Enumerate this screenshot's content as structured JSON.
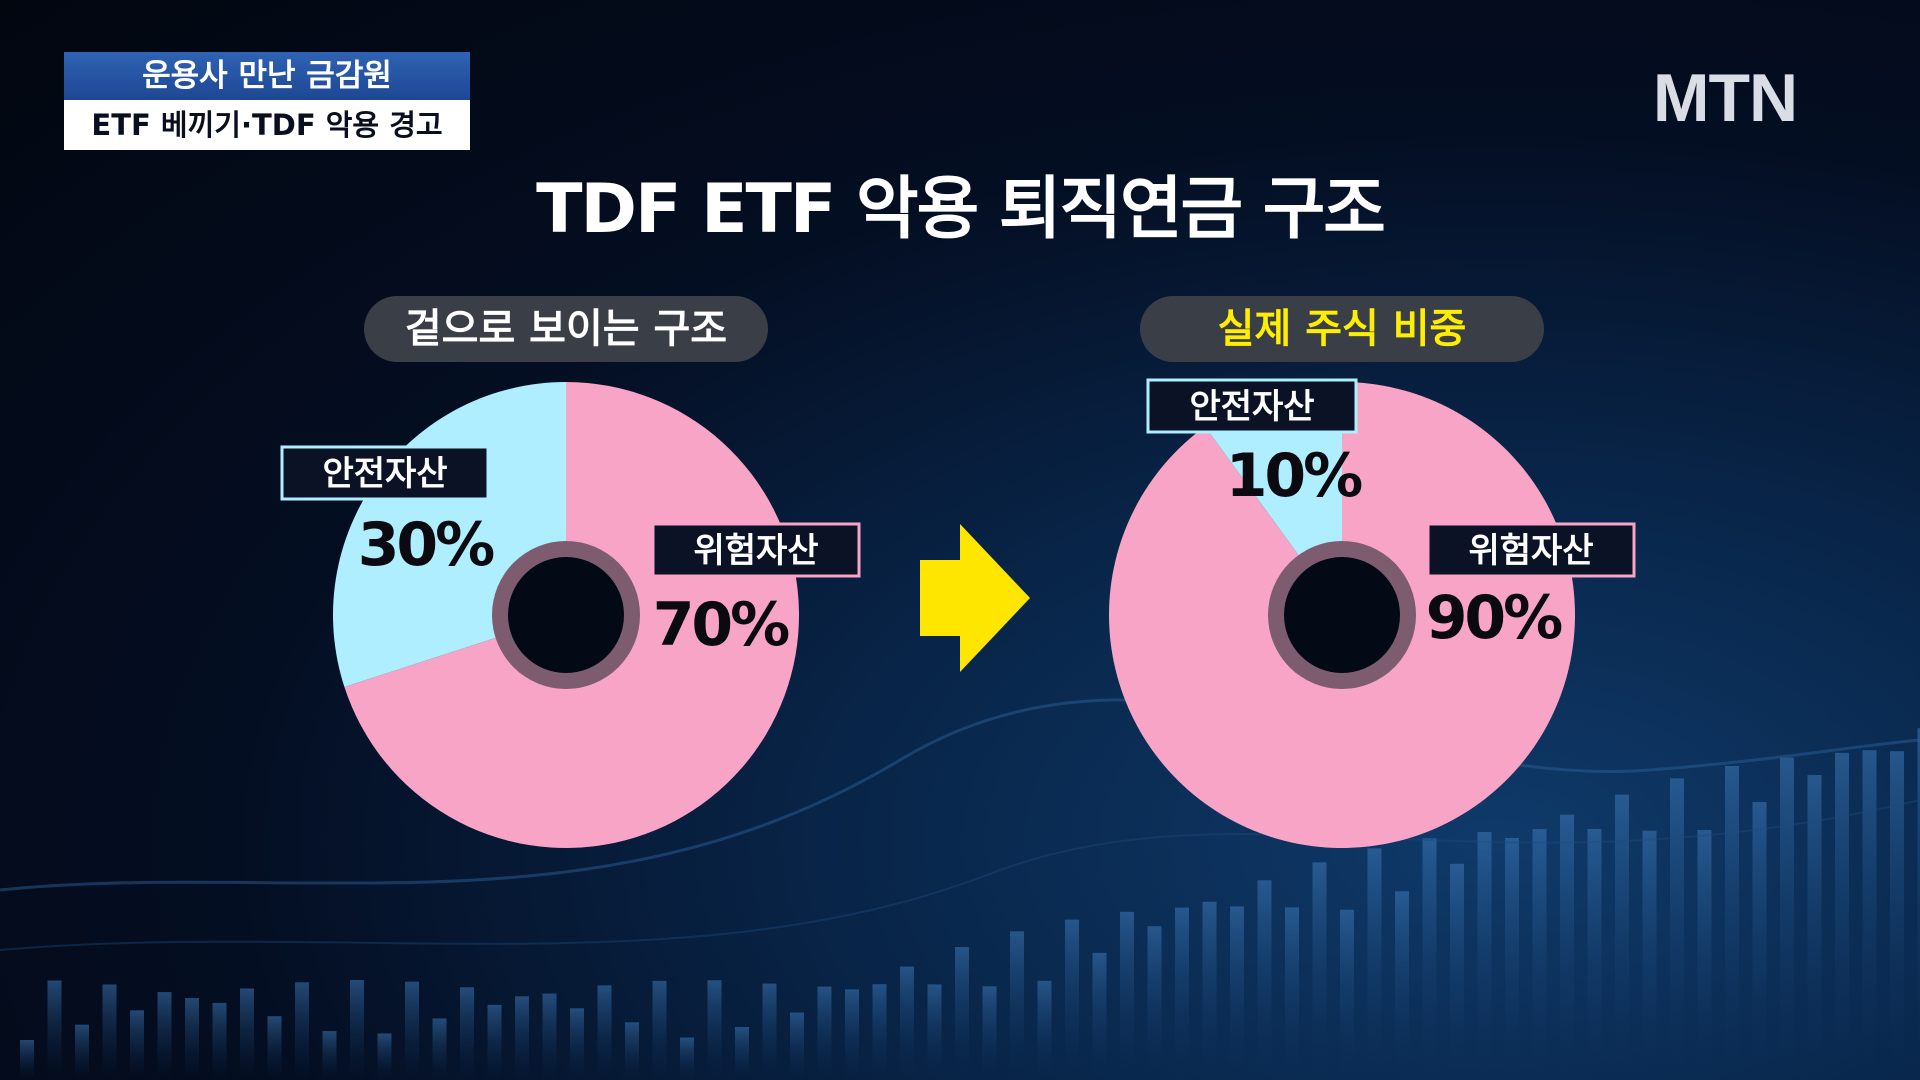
{
  "chyron": {
    "top": "운용사 만난 금감원",
    "bottom": "ETF 베끼기·TDF 악용 경고"
  },
  "logo": "MTN",
  "title": "TDF ETF 악용 퇴직연금 구조",
  "colors": {
    "risk": "#f7a4c6",
    "safe": "#aeeefe",
    "ring": "#7d5c6f",
    "hole": "#040916",
    "label_bg": "#0b1226",
    "label_border_safe": "#aeeefe",
    "label_border_risk": "#f7a4c6",
    "arrow": "#ffe600",
    "pill_highlight": "#ffee00"
  },
  "chart_data": [
    {
      "type": "pie",
      "title": "겉으로 보이는 구조",
      "slices": [
        {
          "label": "안전자산",
          "value": 30,
          "value_text": "30%"
        },
        {
          "label": "위험자산",
          "value": 70,
          "value_text": "70%"
        }
      ]
    },
    {
      "type": "pie",
      "title": "실제 주식 비중",
      "slices": [
        {
          "label": "안전자산",
          "value": 10,
          "value_text": "10%"
        },
        {
          "label": "위험자산",
          "value": 90,
          "value_text": "90%"
        }
      ]
    }
  ]
}
